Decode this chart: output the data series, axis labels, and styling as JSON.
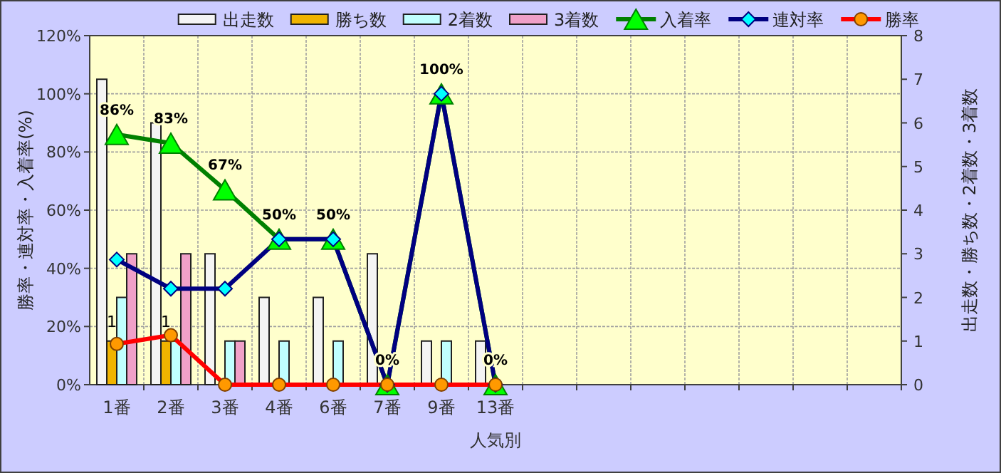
{
  "chart_data": {
    "type": "bar",
    "xlabel": "人気別",
    "ylabel": "勝率・連対率・入着率(%)",
    "y2label": "出走数・勝ち数・2着数・3着数",
    "categories": [
      "1番",
      "2番",
      "3番",
      "4番",
      "6番",
      "7番",
      "9番",
      "13番",
      null,
      null,
      null,
      null,
      null,
      null,
      null
    ],
    "series": [
      {
        "name": "出走数",
        "color": "#f4f4f4",
        "axis": "y2",
        "values": [
          7,
          6,
          3,
          2,
          2,
          3,
          1,
          1,
          null,
          null,
          null,
          null,
          null,
          null,
          null
        ]
      },
      {
        "name": "勝ち数",
        "color": "#f0b400",
        "axis": "y2",
        "values": [
          1,
          1,
          0,
          0,
          0,
          0,
          0,
          0,
          null,
          null,
          null,
          null,
          null,
          null,
          null
        ],
        "value_labels": [
          "1",
          "1",
          null,
          null,
          null,
          null,
          null,
          null,
          null,
          null,
          null,
          null,
          null,
          null,
          null
        ]
      },
      {
        "name": "2着数",
        "color": "#c0ffff",
        "axis": "y2",
        "values": [
          2,
          1,
          1,
          1,
          1,
          0,
          1,
          0,
          null,
          null,
          null,
          null,
          null,
          null,
          null
        ]
      },
      {
        "name": "3着数",
        "color": "#f0a0c8",
        "axis": "y2",
        "values": [
          3,
          3,
          1,
          0,
          0,
          0,
          0,
          0,
          null,
          null,
          null,
          null,
          null,
          null,
          null
        ]
      },
      {
        "name": "入着率",
        "type": "line",
        "color": "#008000",
        "marker": "triangle",
        "values": [
          86,
          83,
          67,
          50,
          50,
          0,
          100,
          0,
          null,
          null,
          null,
          null,
          null,
          null,
          null
        ],
        "value_labels": [
          "86%",
          "83%",
          "67%",
          "50%",
          "50%",
          "0%",
          "100%",
          "0%",
          null,
          null,
          null,
          null,
          null,
          null,
          null
        ]
      },
      {
        "name": "連対率",
        "type": "line",
        "color": "#000080",
        "marker": "diamond",
        "values": [
          43,
          33,
          33,
          50,
          50,
          0,
          100,
          0,
          null,
          null,
          null,
          null,
          null,
          null,
          null
        ]
      },
      {
        "name": "勝率",
        "type": "line",
        "color": "#ff0000",
        "marker": "circle",
        "values": [
          14,
          17,
          0,
          0,
          0,
          0,
          0,
          0,
          null,
          null,
          null,
          null,
          null,
          null,
          null
        ]
      }
    ],
    "ylim": [
      0,
      120
    ],
    "yticks": [
      {
        "value": 0,
        "label": "0%"
      },
      {
        "value": 20,
        "label": "20%"
      },
      {
        "value": 40,
        "label": "40%"
      },
      {
        "value": 60,
        "label": "60%"
      },
      {
        "value": 80,
        "label": "80%"
      },
      {
        "value": 100,
        "label": "100%"
      },
      {
        "value": 120,
        "label": "120%"
      }
    ],
    "y2lim": [
      0,
      8
    ],
    "y2ticks": [
      0,
      1,
      2,
      3,
      4,
      5,
      6,
      7,
      8
    ],
    "grid": true,
    "legend": "top"
  }
}
